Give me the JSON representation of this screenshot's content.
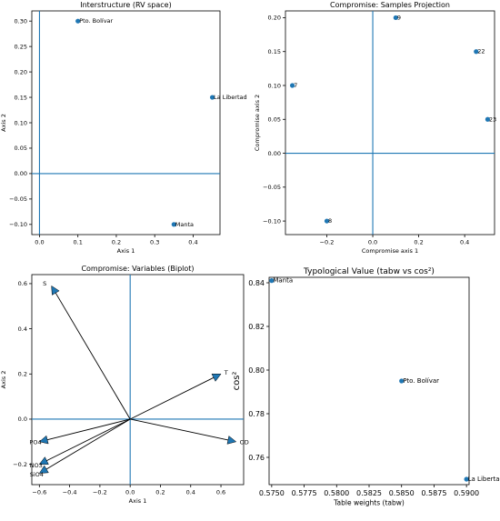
{
  "colors": {
    "point": "#1f77b4",
    "axisline": "#1f77b4",
    "frame": "#000000"
  },
  "chart_data": [
    {
      "type": "scatter",
      "title": "Interstructure (RV space)",
      "xlabel": "Axis 1",
      "ylabel": "Axis 2",
      "xlim": [
        -0.02,
        0.47
      ],
      "ylim": [
        -0.12,
        0.32
      ],
      "xticks": [
        0.0,
        0.1,
        0.2,
        0.3,
        0.4
      ],
      "xticklabels": [
        "0.0",
        "0.1",
        "0.2",
        "0.3",
        "0.4"
      ],
      "yticks": [
        -0.1,
        -0.05,
        0.0,
        0.05,
        0.1,
        0.15,
        0.2,
        0.25,
        0.3
      ],
      "yticklabels": [
        "−0.10",
        "−0.05",
        "0.00",
        "0.05",
        "0.10",
        "0.15",
        "0.20",
        "0.25",
        "0.30"
      ],
      "reference_lines": {
        "x": 0,
        "y": 0
      },
      "points": [
        {
          "label": "Pto. Bolívar",
          "x": 0.1,
          "y": 0.3
        },
        {
          "label": "La Libertad",
          "x": 0.45,
          "y": 0.15
        },
        {
          "label": "Manta",
          "x": 0.35,
          "y": -0.1
        }
      ]
    },
    {
      "type": "scatter",
      "title": "Compromise: Samples Projection",
      "xlabel": "Compromise axis 1",
      "ylabel": "Compromise axis 2",
      "xlim": [
        -0.38,
        0.53
      ],
      "ylim": [
        -0.12,
        0.21
      ],
      "xticks": [
        -0.2,
        0.0,
        0.2,
        0.4
      ],
      "xticklabels": [
        "−0.2",
        "0.0",
        "0.2",
        "0.4"
      ],
      "yticks": [
        -0.1,
        -0.05,
        0.0,
        0.05,
        0.1,
        0.15,
        0.2
      ],
      "yticklabels": [
        "−0.10",
        "−0.05",
        "0.00",
        "0.05",
        "0.10",
        "0.15",
        "0.20"
      ],
      "reference_lines": {
        "x": 0,
        "y": 0
      },
      "points": [
        {
          "label": "9",
          "x": 0.1,
          "y": 0.2
        },
        {
          "label": "22",
          "x": 0.45,
          "y": 0.15
        },
        {
          "label": "7",
          "x": -0.35,
          "y": 0.1
        },
        {
          "label": "23",
          "x": 0.5,
          "y": 0.05
        },
        {
          "label": "8",
          "x": -0.2,
          "y": -0.1
        }
      ]
    },
    {
      "type": "biplot",
      "title": "Compromise: Variables (Biplot)",
      "xlabel": "Axis 1",
      "ylabel": "Axis 2",
      "xlim": [
        -0.65,
        0.75
      ],
      "ylim": [
        -0.29,
        0.64
      ],
      "xticks": [
        -0.6,
        -0.4,
        -0.2,
        0.0,
        0.2,
        0.4,
        0.6
      ],
      "xticklabels": [
        "−0.6",
        "−0.4",
        "−0.2",
        "0.0",
        "0.2",
        "0.4",
        "0.6"
      ],
      "yticks": [
        -0.2,
        0.0,
        0.2,
        0.4,
        0.6
      ],
      "yticklabels": [
        "−0.2",
        "0.0",
        "0.2",
        "0.4",
        "0.6"
      ],
      "reference_lines": {
        "x": 0,
        "y": 0
      },
      "vectors": [
        {
          "label": "S",
          "x": -0.52,
          "y": 0.59
        },
        {
          "label": "T",
          "x": 0.6,
          "y": 0.2
        },
        {
          "label": "OD",
          "x": 0.7,
          "y": -0.1
        },
        {
          "label": "PO4",
          "x": -0.6,
          "y": -0.1
        },
        {
          "label": "NO3",
          "x": -0.6,
          "y": -0.2
        },
        {
          "label": "SiO4",
          "x": -0.6,
          "y": -0.24
        }
      ]
    },
    {
      "type": "scatter",
      "title": "Typological Value (tabw vs cos²)",
      "xlabel": "Table weights (tabw)",
      "ylabel": "cos²",
      "xlim": [
        0.5748,
        0.5902
      ],
      "ylim": [
        0.7475,
        0.8425
      ],
      "xticks": [
        0.575,
        0.5775,
        0.58,
        0.5825,
        0.585,
        0.5875,
        0.59
      ],
      "xticklabels": [
        "0.5750",
        "0.5775",
        "0.5800",
        "0.5825",
        "0.5850",
        "0.5875",
        "0.5900"
      ],
      "yticks": [
        0.76,
        0.78,
        0.8,
        0.82,
        0.84
      ],
      "yticklabels": [
        "0.76",
        "0.78",
        "0.80",
        "0.82",
        "0.84"
      ],
      "reference_lines": null,
      "points": [
        {
          "label": "Manta",
          "x": 0.575,
          "y": 0.841
        },
        {
          "label": "Pto. Bolívar",
          "x": 0.585,
          "y": 0.795
        },
        {
          "label": "La Libertad",
          "x": 0.59,
          "y": 0.75
        }
      ]
    }
  ]
}
